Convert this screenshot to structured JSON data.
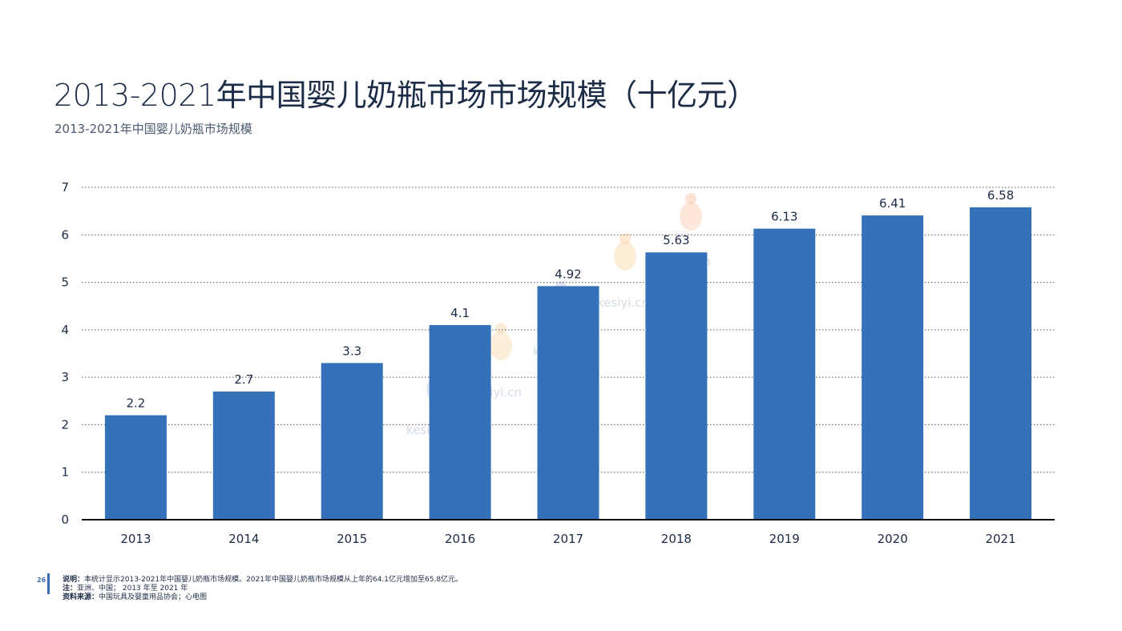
{
  "page": {
    "title_num": "2013-2021",
    "title_text": "年中国婴儿奶瓶市场市场规模（十亿元）",
    "subtitle": "2013-2021年中国婴儿奶瓶市场规模",
    "page_number": "26",
    "note_label": "说明：",
    "note_text": "本统计显示2013-2021年中国婴儿奶瓶市场规模。2021年中国婴儿奶瓶市场规模从上年的64.1亿元增加至65.8亿元。",
    "scope_label": "注：",
    "scope_text": "亚洲、中国；  2013 年至 2021 年",
    "source_label": "资料来源：",
    "source_text": "中国玩具及婴童用品协会；心电图",
    "watermark": "kesiyi.cn"
  },
  "colors": {
    "bar": "#3471b8",
    "text": "#1c2b46",
    "grid": "#555555",
    "axis": "#111111"
  },
  "chart_data": {
    "type": "bar",
    "title": "2013-2021年中国婴儿奶瓶市场市场规模（十亿元）",
    "xlabel": "",
    "ylabel": "",
    "categories": [
      "2013",
      "2014",
      "2015",
      "2016",
      "2017",
      "2018",
      "2019",
      "2020",
      "2021"
    ],
    "values": [
      2.2,
      2.7,
      3.3,
      4.1,
      4.92,
      5.63,
      6.13,
      6.41,
      6.58
    ],
    "value_labels": [
      "2.2",
      "2.7",
      "3.3",
      "4.1",
      "4.92",
      "5.63",
      "6.13",
      "6.41",
      "6.58"
    ],
    "ylim": [
      0,
      7
    ],
    "yticks": [
      0,
      1,
      2,
      3,
      4,
      5,
      6,
      7
    ],
    "grid": true,
    "legend": "none"
  }
}
